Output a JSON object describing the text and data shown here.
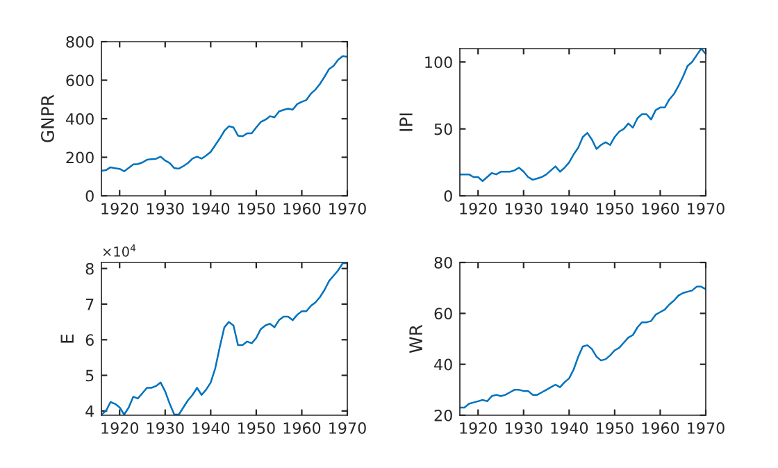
{
  "chart_data": [
    {
      "type": "line",
      "ylabel": "GNPR",
      "x": [
        1916,
        1917,
        1918,
        1919,
        1920,
        1921,
        1922,
        1923,
        1924,
        1925,
        1926,
        1927,
        1928,
        1929,
        1930,
        1931,
        1932,
        1933,
        1934,
        1935,
        1936,
        1937,
        1938,
        1939,
        1940,
        1941,
        1942,
        1943,
        1944,
        1945,
        1946,
        1947,
        1948,
        1949,
        1950,
        1951,
        1952,
        1953,
        1954,
        1955,
        1956,
        1957,
        1958,
        1959,
        1960,
        1961,
        1962,
        1963,
        1964,
        1965,
        1966,
        1967,
        1968,
        1969,
        1970
      ],
      "series": [
        {
          "color": "#0072bd",
          "values": [
            130,
            133,
            148,
            143,
            140,
            127,
            145,
            163,
            165,
            173,
            187,
            190,
            192,
            203,
            183,
            170,
            144,
            141,
            154,
            170,
            193,
            203,
            193,
            209,
            228,
            263,
            298,
            337,
            361,
            355,
            312,
            309,
            324,
            324,
            355,
            383,
            395,
            413,
            407,
            438,
            446,
            452,
            447,
            476,
            488,
            497,
            530,
            551,
            581,
            618,
            658,
            675,
            706,
            725,
            722
          ]
        }
      ],
      "xlim": [
        1916,
        1970
      ],
      "xticks": [
        1920,
        1930,
        1940,
        1950,
        1960,
        1970
      ],
      "ylim": [
        0,
        800
      ],
      "yticks": [
        0,
        200,
        400,
        600,
        800
      ],
      "grid": false,
      "legend": false
    },
    {
      "type": "line",
      "ylabel": "IPI",
      "x": [
        1916,
        1917,
        1918,
        1919,
        1920,
        1921,
        1922,
        1923,
        1924,
        1925,
        1926,
        1927,
        1928,
        1929,
        1930,
        1931,
        1932,
        1933,
        1934,
        1935,
        1936,
        1937,
        1938,
        1939,
        1940,
        1941,
        1942,
        1943,
        1944,
        1945,
        1946,
        1947,
        1948,
        1949,
        1950,
        1951,
        1952,
        1953,
        1954,
        1955,
        1956,
        1957,
        1958,
        1959,
        1960,
        1961,
        1962,
        1963,
        1964,
        1965,
        1966,
        1967,
        1968,
        1969,
        1970
      ],
      "series": [
        {
          "color": "#0072bd",
          "values": [
            16,
            16,
            16,
            14,
            14,
            11,
            14,
            17,
            16,
            18,
            18,
            18,
            19,
            21,
            18,
            14,
            12,
            13,
            14,
            16,
            19,
            22,
            18,
            21,
            25,
            31,
            36,
            44,
            47,
            42,
            35,
            38,
            40,
            38,
            44,
            48,
            50,
            54,
            51,
            58,
            61,
            61,
            57,
            64,
            66,
            66,
            72,
            76,
            82,
            89,
            97,
            100,
            105,
            110,
            106
          ]
        }
      ],
      "xlim": [
        1916,
        1970
      ],
      "xticks": [
        1920,
        1930,
        1940,
        1950,
        1960,
        1970
      ],
      "ylim": [
        0,
        110
      ],
      "yticks": [
        0,
        50,
        100
      ],
      "grid": false,
      "legend": false
    },
    {
      "type": "line",
      "ylabel": "E",
      "annotations": [
        "×10$^{4}$"
      ],
      "x": [
        1916,
        1917,
        1918,
        1919,
        1920,
        1921,
        1922,
        1923,
        1924,
        1925,
        1926,
        1927,
        1928,
        1929,
        1930,
        1931,
        1932,
        1933,
        1934,
        1935,
        1936,
        1937,
        1938,
        1939,
        1940,
        1941,
        1942,
        1943,
        1944,
        1945,
        1946,
        1947,
        1948,
        1949,
        1950,
        1951,
        1952,
        1953,
        1954,
        1955,
        1956,
        1957,
        1958,
        1959,
        1960,
        1961,
        1962,
        1963,
        1964,
        1965,
        1966,
        1967,
        1968,
        1969,
        1970
      ],
      "series": [
        {
          "color": "#0072bd",
          "values": [
            3.9,
            4.0,
            4.25,
            4.2,
            4.1,
            3.9,
            4.1,
            4.4,
            4.35,
            4.5,
            4.65,
            4.65,
            4.7,
            4.8,
            4.55,
            4.2,
            3.9,
            3.9,
            4.1,
            4.3,
            4.45,
            4.65,
            4.45,
            4.6,
            4.8,
            5.2,
            5.8,
            6.35,
            6.5,
            6.4,
            5.85,
            5.85,
            5.95,
            5.9,
            6.05,
            6.3,
            6.4,
            6.45,
            6.35,
            6.55,
            6.65,
            6.65,
            6.55,
            6.7,
            6.8,
            6.8,
            6.95,
            7.05,
            7.2,
            7.4,
            7.65,
            7.8,
            7.95,
            8.15,
            8.15
          ]
        }
      ],
      "xlim": [
        1916,
        1970
      ],
      "xticks": [
        1920,
        1930,
        1940,
        1950,
        1960,
        1970
      ],
      "ylim": [
        3.88,
        8.17
      ],
      "yticks": [
        4,
        5,
        6,
        7,
        8
      ],
      "grid": false,
      "legend": false
    },
    {
      "type": "line",
      "ylabel": "WR",
      "x": [
        1916,
        1917,
        1918,
        1919,
        1920,
        1921,
        1922,
        1923,
        1924,
        1925,
        1926,
        1927,
        1928,
        1929,
        1930,
        1931,
        1932,
        1933,
        1934,
        1935,
        1936,
        1937,
        1938,
        1939,
        1940,
        1941,
        1942,
        1943,
        1944,
        1945,
        1946,
        1947,
        1948,
        1949,
        1950,
        1951,
        1952,
        1953,
        1954,
        1955,
        1956,
        1957,
        1958,
        1959,
        1960,
        1961,
        1962,
        1963,
        1964,
        1965,
        1966,
        1967,
        1968,
        1969,
        1970
      ],
      "series": [
        {
          "color": "#0072bd",
          "values": [
            23,
            23,
            24.5,
            25,
            25.5,
            26,
            25.5,
            27.5,
            28,
            27.5,
            28,
            29,
            30,
            30,
            29.5,
            29.5,
            28,
            28,
            29,
            30,
            31,
            32,
            31,
            33,
            34.5,
            38,
            43,
            47,
            47.5,
            46,
            43,
            41.5,
            42,
            43.5,
            45.5,
            46.5,
            48.5,
            50.5,
            51.5,
            54.5,
            56.5,
            56.5,
            57,
            59.5,
            60.5,
            61.5,
            63.5,
            65,
            67,
            68,
            68.5,
            69,
            70.5,
            70.5,
            69.5
          ]
        }
      ],
      "xlim": [
        1916,
        1970
      ],
      "xticks": [
        1920,
        1930,
        1940,
        1950,
        1960,
        1970
      ],
      "ylim": [
        20,
        80
      ],
      "yticks": [
        20,
        40,
        60,
        80
      ],
      "grid": false,
      "legend": false
    }
  ]
}
